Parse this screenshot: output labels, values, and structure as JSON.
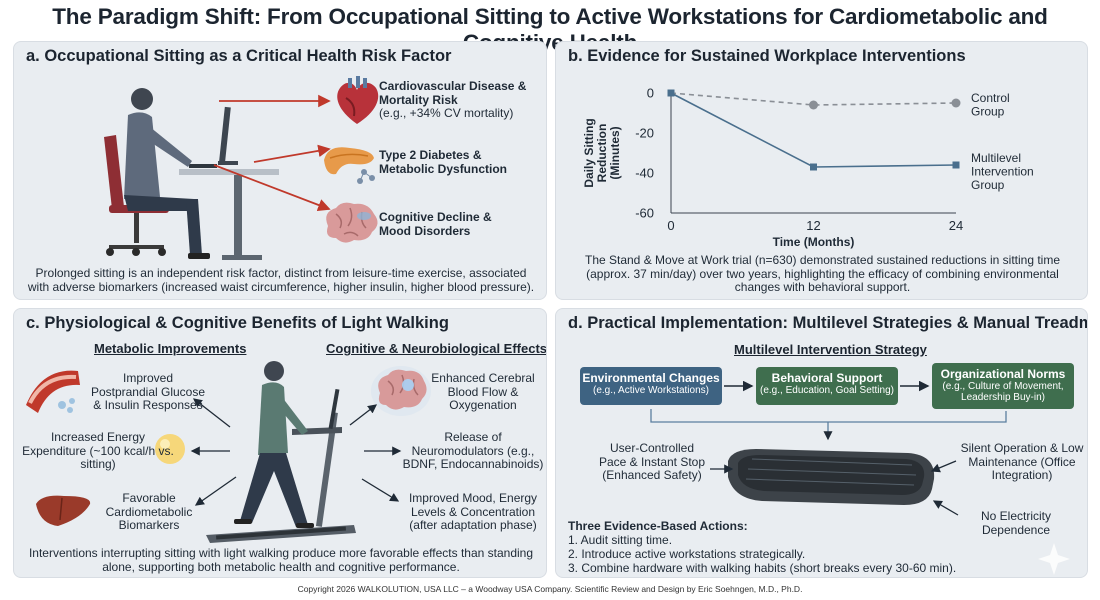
{
  "title": "The Paradigm Shift: From Occupational Sitting to Active Workstations for Cardiometabolic and Cognitive Health",
  "panel_a": {
    "heading": "a. Occupational Sitting as a Critical Health Risk Factor",
    "risks": [
      {
        "title": "Cardiovascular Disease & Mortality Risk",
        "detail": "(e.g., +34% CV mortality)"
      },
      {
        "title": "Type 2 Diabetes & Metabolic Dysfunction",
        "detail": ""
      },
      {
        "title": "Cognitive Decline & Mood Disorders",
        "detail": ""
      }
    ],
    "caption": "Prolonged sitting is an independent risk factor, distinct from leisure-time exercise, associated with adverse biomarkers (increased waist circumference, higher insulin, higher blood pressure)."
  },
  "panel_b": {
    "heading": "b. Evidence for Sustained Workplace Interventions",
    "caption": "The Stand & Move at Work trial (n=630) demonstrated sustained reductions in sitting time (approx. 37 min/day) over two years, highlighting the efficacy of combining environmental changes with behavioral support."
  },
  "chart_data": {
    "type": "line",
    "x": [
      0,
      12,
      24
    ],
    "xlabel": "Time (Months)",
    "ylabel": "Daily Sitting Reduction (Minutes)",
    "ylim": [
      -60,
      0
    ],
    "yticks": [
      0,
      -20,
      -40,
      -60
    ],
    "xticks": [
      0,
      12,
      24
    ],
    "series": [
      {
        "name": "Control Group",
        "values": [
          0,
          -6,
          -5
        ],
        "style": "dashed",
        "color": "#8a8f96"
      },
      {
        "name": "Multilevel Intervention Group",
        "values": [
          0,
          -37,
          -36
        ],
        "style": "solid",
        "color": "#4a6f8d"
      }
    ]
  },
  "panel_c": {
    "heading": "c. Physiological & Cognitive Benefits of Light Walking",
    "left_sub": "Metabolic Improvements",
    "right_sub": "Cognitive & Neurobiological Effects",
    "left_items": [
      "Improved Postprandial Glucose & Insulin Responses",
      "Increased Energy Expenditure (~100 kcal/h vs. sitting)",
      "Favorable Cardiometabolic Biomarkers"
    ],
    "right_items": [
      "Enhanced Cerebral Blood Flow & Oxygenation",
      "Release of Neuromodulators (e.g., BDNF, Endocannabinoids)",
      "Improved Mood, Energy Levels & Concentration (after adaptation phase)"
    ],
    "caption": "Interventions interrupting sitting with light walking produce more favorable effects than standing alone, supporting both metabolic health and cognitive performance."
  },
  "panel_d": {
    "heading": "d. Practical Implementation: Multilevel Strategies & Manual Treadmill Desks",
    "strategy_title": "Multilevel Intervention Strategy",
    "boxes": [
      {
        "title": "Environmental Changes",
        "detail": "(e.g., Active Workstations)",
        "color": "#3e6382"
      },
      {
        "title": "Behavioral Support",
        "detail": "(e.g., Education, Goal Setting)",
        "color": "#3f6e4e"
      },
      {
        "title": "Organizational Norms",
        "detail": "(e.g., Culture of Movement, Leadership Buy-in)",
        "color": "#3f6e4e"
      }
    ],
    "features": [
      "User-Controlled Pace & Instant Stop (Enhanced Safety)",
      "Silent Operation & Low Maintenance (Office Integration)",
      "No Electricity Dependence"
    ],
    "actions_title": "Three Evidence-Based Actions:",
    "actions": [
      "1. Audit sitting time.",
      "2. Introduce active workstations strategically.",
      "3. Combine hardware with walking habits (short breaks every 30-60 min)."
    ]
  },
  "footer": "Copyright 2026 WALKOLUTION, USA LLC – a Woodway USA Company. Scientific Review and Design by Eric Soehngen, M.D., Ph.D.",
  "colors": {
    "panel_bg": "#e9edf1",
    "blue": "#3e6382",
    "green": "#3f6e4e",
    "arrow_red": "#c0392b"
  }
}
